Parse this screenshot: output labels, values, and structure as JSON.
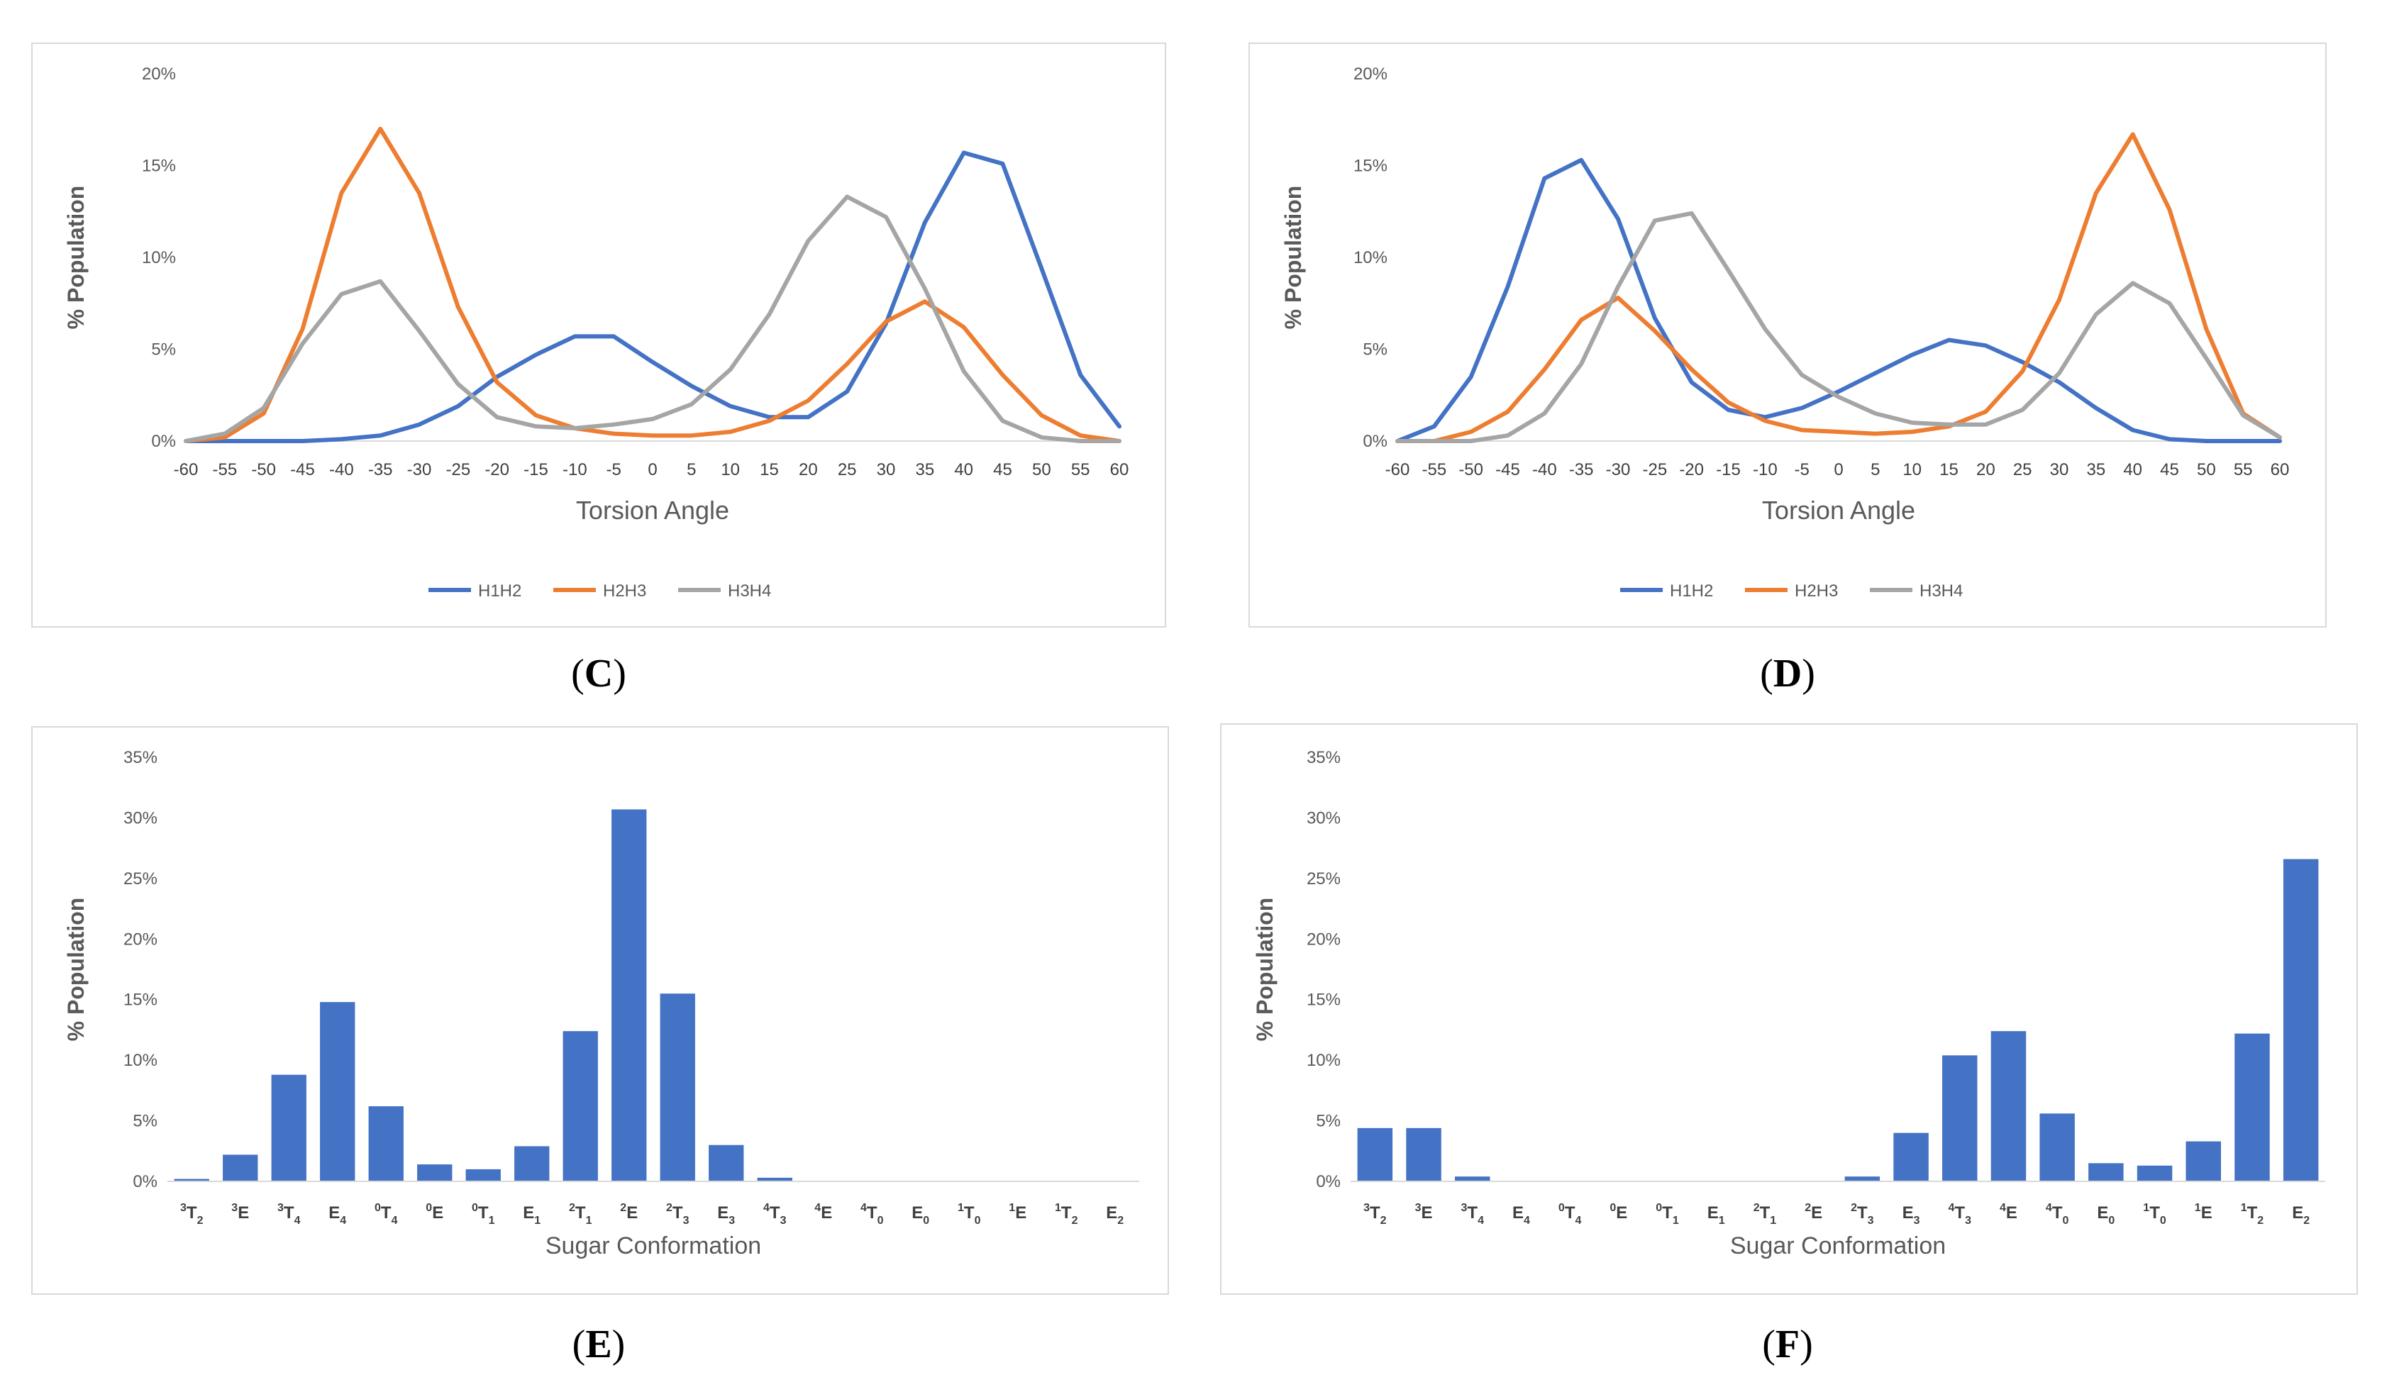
{
  "captions": {
    "C": "C",
    "D": "D",
    "E": "E",
    "F": "F"
  },
  "chart_data": [
    {
      "panel": "C",
      "type": "line",
      "xlabel": "Torsion Angle",
      "ylabel": "% Population",
      "ylim": [
        0,
        20
      ],
      "yticks": [
        "0%",
        "5%",
        "10%",
        "15%",
        "20%"
      ],
      "x": [
        -60,
        -55,
        -50,
        -45,
        -40,
        -35,
        -30,
        -25,
        -20,
        -15,
        -10,
        -5,
        0,
        5,
        10,
        15,
        20,
        25,
        30,
        35,
        40,
        45,
        50,
        55,
        60
      ],
      "legend_position": "bottom",
      "series": [
        {
          "name": "H1H2",
          "color": "#4472c4",
          "values": [
            0,
            0,
            0,
            0,
            0.1,
            0.3,
            0.9,
            1.9,
            3.5,
            4.7,
            5.7,
            5.7,
            4.3,
            3.0,
            1.9,
            1.3,
            1.3,
            2.7,
            6.4,
            11.9,
            15.7,
            15.1,
            9.4,
            3.6,
            0.8
          ]
        },
        {
          "name": "H2H3",
          "color": "#ed7d31",
          "values": [
            0,
            0.2,
            1.5,
            6.1,
            13.5,
            17.0,
            13.5,
            7.3,
            3.2,
            1.4,
            0.7,
            0.4,
            0.3,
            0.3,
            0.5,
            1.1,
            2.2,
            4.2,
            6.5,
            7.6,
            6.2,
            3.6,
            1.4,
            0.3,
            0
          ]
        },
        {
          "name": "H3H4",
          "color": "#a5a5a5",
          "values": [
            0,
            0.4,
            1.8,
            5.3,
            8.0,
            8.7,
            6.0,
            3.1,
            1.3,
            0.8,
            0.7,
            0.9,
            1.2,
            2.0,
            3.9,
            6.9,
            10.9,
            13.3,
            12.2,
            8.3,
            3.8,
            1.1,
            0.2,
            0,
            0
          ]
        }
      ]
    },
    {
      "panel": "D",
      "type": "line",
      "xlabel": "Torsion Angle",
      "ylabel": "% Population",
      "ylim": [
        0,
        20
      ],
      "yticks": [
        "0%",
        "5%",
        "10%",
        "15%",
        "20%"
      ],
      "x": [
        -60,
        -55,
        -50,
        -45,
        -40,
        -35,
        -30,
        -25,
        -20,
        -15,
        -10,
        -5,
        0,
        5,
        10,
        15,
        20,
        25,
        30,
        35,
        40,
        45,
        50,
        55,
        60
      ],
      "legend_position": "bottom",
      "series": [
        {
          "name": "H1H2",
          "color": "#4472c4",
          "values": [
            0,
            0.8,
            3.5,
            8.4,
            14.3,
            15.3,
            12.1,
            6.7,
            3.2,
            1.7,
            1.3,
            1.8,
            2.7,
            3.7,
            4.7,
            5.5,
            5.2,
            4.3,
            3.2,
            1.8,
            0.6,
            0.1,
            0,
            0,
            0
          ]
        },
        {
          "name": "H2H3",
          "color": "#ed7d31",
          "values": [
            0,
            0,
            0.5,
            1.6,
            3.9,
            6.6,
            7.8,
            6.0,
            3.9,
            2.1,
            1.1,
            0.6,
            0.5,
            0.4,
            0.5,
            0.8,
            1.6,
            3.8,
            7.7,
            13.5,
            16.7,
            12.6,
            6.1,
            1.5,
            0.2
          ]
        },
        {
          "name": "H3H4",
          "color": "#a5a5a5",
          "values": [
            0,
            0,
            0,
            0.3,
            1.5,
            4.2,
            8.4,
            12.0,
            12.4,
            9.3,
            6.1,
            3.6,
            2.4,
            1.5,
            1.0,
            0.9,
            0.9,
            1.7,
            3.7,
            6.9,
            8.6,
            7.5,
            4.5,
            1.4,
            0.2
          ]
        }
      ]
    },
    {
      "panel": "E",
      "type": "bar",
      "xlabel": "Sugar Conformation",
      "ylabel": "% Population",
      "ylim": [
        0,
        35
      ],
      "yticks": [
        "0%",
        "5%",
        "10%",
        "15%",
        "20%",
        "25%",
        "30%",
        "35%"
      ],
      "color": "#4472c4",
      "categories": [
        [
          "3",
          "T",
          "2"
        ],
        [
          "3",
          "E",
          ""
        ],
        [
          "3",
          "T",
          "4"
        ],
        [
          "",
          "E",
          "4"
        ],
        [
          "0",
          "T",
          "4"
        ],
        [
          "0",
          "E",
          ""
        ],
        [
          "0",
          "T",
          "1"
        ],
        [
          "",
          "E",
          "1"
        ],
        [
          "2",
          "T",
          "1"
        ],
        [
          "2",
          "E",
          ""
        ],
        [
          "2",
          "T",
          "3"
        ],
        [
          "",
          "E",
          "3"
        ],
        [
          "4",
          "T",
          "3"
        ],
        [
          "4",
          "E",
          ""
        ],
        [
          "4",
          "T",
          "0"
        ],
        [
          "",
          "E",
          "0"
        ],
        [
          "1",
          "T",
          "0"
        ],
        [
          "1",
          "E",
          ""
        ],
        [
          "1",
          "T",
          "2"
        ],
        [
          "",
          "E",
          "2"
        ]
      ],
      "values": [
        0.2,
        2.2,
        8.8,
        14.8,
        6.2,
        1.4,
        1.0,
        2.9,
        12.4,
        30.7,
        15.5,
        3.0,
        0.3,
        0,
        0,
        0,
        0,
        0,
        0,
        0
      ]
    },
    {
      "panel": "F",
      "type": "bar",
      "xlabel": "Sugar Conformation",
      "ylabel": "% Population",
      "ylim": [
        0,
        35
      ],
      "yticks": [
        "0%",
        "5%",
        "10%",
        "15%",
        "20%",
        "25%",
        "30%",
        "35%"
      ],
      "color": "#4472c4",
      "categories": [
        [
          "3",
          "T",
          "2"
        ],
        [
          "3",
          "E",
          ""
        ],
        [
          "3",
          "T",
          "4"
        ],
        [
          "",
          "E",
          "4"
        ],
        [
          "0",
          "T",
          "4"
        ],
        [
          "0",
          "E",
          ""
        ],
        [
          "0",
          "T",
          "1"
        ],
        [
          "",
          "E",
          "1"
        ],
        [
          "2",
          "T",
          "1"
        ],
        [
          "2",
          "E",
          ""
        ],
        [
          "2",
          "T",
          "3"
        ],
        [
          "",
          "E",
          "3"
        ],
        [
          "4",
          "T",
          "3"
        ],
        [
          "4",
          "E",
          ""
        ],
        [
          "4",
          "T",
          "0"
        ],
        [
          "",
          "E",
          "0"
        ],
        [
          "1",
          "T",
          "0"
        ],
        [
          "1",
          "E",
          ""
        ],
        [
          "1",
          "T",
          "2"
        ],
        [
          "",
          "E",
          "2"
        ]
      ],
      "values": [
        4.4,
        4.4,
        0.4,
        0,
        0,
        0,
        0,
        0,
        0,
        0,
        0.4,
        4.0,
        10.4,
        12.4,
        5.6,
        1.5,
        1.3,
        3.3,
        12.2,
        26.6
      ]
    }
  ]
}
